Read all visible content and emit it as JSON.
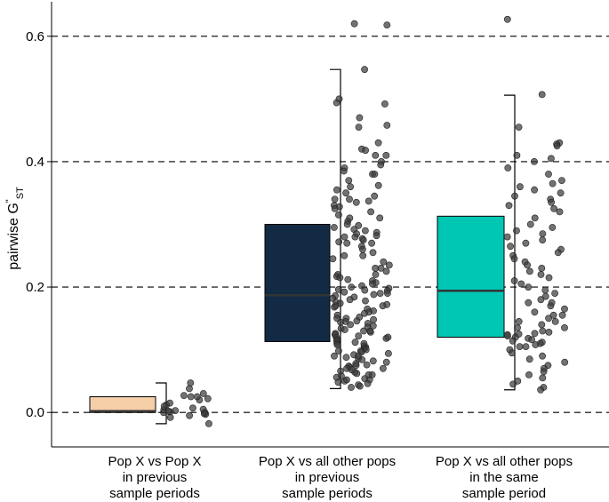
{
  "chart_data": {
    "type": "box-with-jitter",
    "ylabel": {
      "main": "pairwise G",
      "sup": "\"",
      "sub": "ST"
    },
    "ylim": [
      -0.055,
      0.655
    ],
    "yticks": [
      "0.0",
      "0.2",
      "0.4",
      "0.6"
    ],
    "ytick_values": [
      0.0,
      0.2,
      0.4,
      0.6
    ],
    "grid": "dashed horizontal at major ticks",
    "categories": [
      [
        "Pop X vs Pop X",
        "in previous",
        "sample periods"
      ],
      [
        "Pop X vs all other pops",
        "in previous",
        "sample periods"
      ],
      [
        "Pop X vs all other pops",
        "in the same",
        "sample period"
      ]
    ],
    "boxes": [
      {
        "q1": 0.0,
        "median": 0.002,
        "q3": 0.025,
        "whisker_low": -0.018,
        "whisker_high": 0.047,
        "color": "#f5cfa8"
      },
      {
        "q1": 0.113,
        "median": 0.187,
        "q3": 0.3,
        "whisker_low": 0.038,
        "whisker_high": 0.547,
        "color": "#132a44"
      },
      {
        "q1": 0.12,
        "median": 0.194,
        "q3": 0.313,
        "whisker_low": 0.036,
        "whisker_high": 0.506,
        "color": "#00c6b4"
      }
    ],
    "points": [
      [
        0.0,
        0.003,
        -0.003,
        0.005,
        0.012,
        0.02,
        0.03,
        0.047,
        0.025,
        0.022,
        -0.005,
        0.0,
        0.015,
        0.007,
        -0.018,
        0.004,
        0.027,
        0.001,
        0.038,
        -0.008,
        0.002,
        0.025,
        0.01,
        -0.002
      ],
      [
        0.62,
        0.618,
        0.547,
        0.5,
        0.494,
        0.492,
        0.47,
        0.458,
        0.455,
        0.43,
        0.42,
        0.418,
        0.41,
        0.4,
        0.395,
        0.39,
        0.385,
        0.38,
        0.37,
        0.362,
        0.355,
        0.35,
        0.345,
        0.34,
        0.337,
        0.335,
        0.33,
        0.328,
        0.325,
        0.32,
        0.315,
        0.31,
        0.305,
        0.3,
        0.298,
        0.295,
        0.292,
        0.29,
        0.287,
        0.285,
        0.282,
        0.28,
        0.277,
        0.275,
        0.272,
        0.27,
        0.265,
        0.26,
        0.255,
        0.25,
        0.245,
        0.24,
        0.235,
        0.23,
        0.225,
        0.22,
        0.217,
        0.215,
        0.212,
        0.21,
        0.207,
        0.205,
        0.202,
        0.2,
        0.198,
        0.196,
        0.194,
        0.192,
        0.19,
        0.188,
        0.186,
        0.184,
        0.182,
        0.18,
        0.178,
        0.176,
        0.174,
        0.172,
        0.17,
        0.168,
        0.165,
        0.162,
        0.16,
        0.158,
        0.155,
        0.152,
        0.15,
        0.148,
        0.146,
        0.144,
        0.142,
        0.14,
        0.138,
        0.136,
        0.134,
        0.132,
        0.13,
        0.128,
        0.126,
        0.124,
        0.122,
        0.12,
        0.118,
        0.116,
        0.114,
        0.112,
        0.11,
        0.108,
        0.106,
        0.104,
        0.102,
        0.1,
        0.098,
        0.096,
        0.094,
        0.092,
        0.09,
        0.088,
        0.086,
        0.084,
        0.082,
        0.08,
        0.078,
        0.076,
        0.074,
        0.072,
        0.07,
        0.068,
        0.066,
        0.064,
        0.062,
        0.06,
        0.058,
        0.056,
        0.054,
        0.052,
        0.05,
        0.048,
        0.046,
        0.044,
        0.042,
        0.04,
        0.052,
        0.075,
        0.098,
        0.12,
        0.145,
        0.17,
        0.195,
        0.22,
        0.25,
        0.28,
        0.31,
        0.34,
        0.36,
        0.38,
        0.41,
        0.27,
        0.23,
        0.19,
        0.15,
        0.13,
        0.11,
        0.09,
        0.07,
        0.06
      ],
      [
        0.627,
        0.507,
        0.455,
        0.43,
        0.428,
        0.425,
        0.41,
        0.405,
        0.4,
        0.39,
        0.38,
        0.37,
        0.365,
        0.36,
        0.355,
        0.35,
        0.345,
        0.34,
        0.335,
        0.33,
        0.325,
        0.32,
        0.31,
        0.3,
        0.295,
        0.29,
        0.285,
        0.28,
        0.275,
        0.27,
        0.265,
        0.26,
        0.255,
        0.25,
        0.245,
        0.24,
        0.235,
        0.23,
        0.225,
        0.22,
        0.215,
        0.21,
        0.205,
        0.2,
        0.195,
        0.19,
        0.185,
        0.18,
        0.175,
        0.17,
        0.165,
        0.16,
        0.155,
        0.15,
        0.145,
        0.14,
        0.135,
        0.13,
        0.128,
        0.126,
        0.124,
        0.122,
        0.12,
        0.118,
        0.116,
        0.114,
        0.112,
        0.11,
        0.108,
        0.105,
        0.1,
        0.095,
        0.09,
        0.085,
        0.08,
        0.075,
        0.07,
        0.065,
        0.06,
        0.055,
        0.05,
        0.045,
        0.04,
        0.036,
        0.175,
        0.145,
        0.125,
        0.105,
        0.135,
        0.155
      ]
    ]
  }
}
